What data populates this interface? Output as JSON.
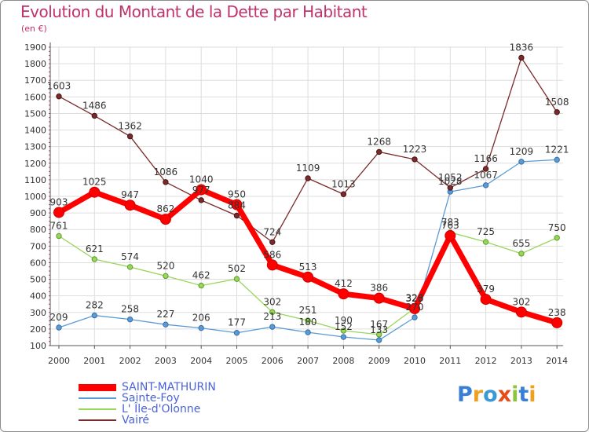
{
  "header": {
    "title": "Evolution du Montant de la Dette par Habitant",
    "subtitle": "(en €)"
  },
  "logo": {
    "text": "Proxiti",
    "letters": [
      {
        "ch": "P",
        "color": "#3a7fd6"
      },
      {
        "ch": "r",
        "color": "#f0a020"
      },
      {
        "ch": "o",
        "color": "#3a9ad6"
      },
      {
        "ch": "x",
        "color": "#e84c1a"
      },
      {
        "ch": "i",
        "color": "#8cc43c"
      },
      {
        "ch": "t",
        "color": "#3a7fd6"
      },
      {
        "ch": "i",
        "color": "#f0a020"
      }
    ]
  },
  "chart_data": {
    "type": "line",
    "title": "Evolution du Montant de la Dette par Habitant",
    "subtitle": "(en €)",
    "xlabel": "",
    "ylabel": "",
    "x": [
      "2000",
      "2001",
      "2002",
      "2003",
      "2004",
      "2005",
      "2006",
      "2007",
      "2008",
      "2009",
      "2010",
      "2011",
      "2012",
      "2013",
      "2014"
    ],
    "ylim": [
      100,
      1900
    ],
    "yticks": [
      100,
      200,
      300,
      400,
      500,
      600,
      700,
      800,
      900,
      1000,
      1100,
      1200,
      1300,
      1400,
      1500,
      1600,
      1700,
      1800,
      1900
    ],
    "grid": true,
    "legend_position": "bottom-left",
    "series": [
      {
        "name": "SAINT-MATHURIN",
        "color": "#ff0000",
        "values": [
          903,
          1025,
          947,
          862,
          1040,
          950,
          586,
          513,
          412,
          386,
          323,
          763,
          379,
          302,
          238
        ]
      },
      {
        "name": "Sainte-Foy",
        "color": "#5b9bd5",
        "values": [
          209,
          282,
          258,
          227,
          206,
          177,
          213,
          180,
          152,
          133,
          270,
          1028,
          1067,
          1209,
          1221
        ]
      },
      {
        "name": "L' Île-d'Olonne",
        "color": "#99d65a",
        "values": [
          761,
          621,
          574,
          520,
          462,
          502,
          302,
          251,
          190,
          167,
          326,
          783,
          725,
          655,
          750
        ]
      },
      {
        "name": "Vairé",
        "color": "#7a2a2a",
        "values": [
          1603,
          1486,
          1362,
          1086,
          977,
          884,
          724,
          1109,
          1013,
          1268,
          1223,
          1052,
          1166,
          1836,
          1508
        ]
      }
    ]
  }
}
